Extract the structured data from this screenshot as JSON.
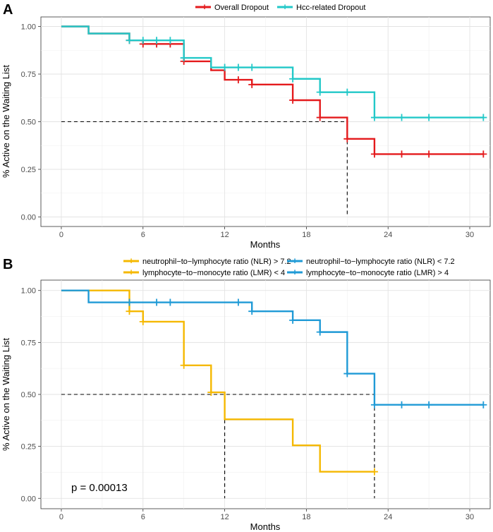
{
  "chart_data": [
    {
      "type": "line",
      "panel_label": "A",
      "title": "",
      "xlabel": "Months",
      "ylabel": "% Active on the Waiting List",
      "xlim": [
        -1.5,
        31.5
      ],
      "ylim": [
        -0.05,
        1.05
      ],
      "xticks": [
        0,
        6,
        12,
        18,
        24,
        30
      ],
      "yticks": [
        0.0,
        0.25,
        0.5,
        0.75,
        1.0
      ],
      "xtick_labels": [
        "0",
        "6",
        "12",
        "18",
        "24",
        "30"
      ],
      "ytick_labels": [
        "0.00",
        "0.25",
        "0.50",
        "0.75",
        "1.00"
      ],
      "grid": true,
      "legend_position": "top",
      "series": [
        {
          "name": "Overall Dropout",
          "color": "#e41a1c",
          "steps": [
            [
              0,
              1.0
            ],
            [
              2,
              0.963
            ],
            [
              5,
              0.927
            ],
            [
              6,
              0.908
            ],
            [
              9,
              0.817
            ],
            [
              11,
              0.77
            ],
            [
              12,
              0.72
            ],
            [
              14,
              0.695
            ],
            [
              17,
              0.613
            ],
            [
              19,
              0.522
            ],
            [
              21,
              0.41
            ],
            [
              23,
              0.33
            ],
            [
              31,
              0.33
            ]
          ],
          "censor": [
            [
              5,
              0.927
            ],
            [
              6,
              0.908
            ],
            [
              7,
              0.908
            ],
            [
              8,
              0.908
            ],
            [
              9,
              0.817
            ],
            [
              13,
              0.72
            ],
            [
              14,
              0.695
            ],
            [
              17,
              0.613
            ],
            [
              19,
              0.522
            ],
            [
              21,
              0.41
            ],
            [
              23,
              0.33
            ],
            [
              25,
              0.33
            ],
            [
              27,
              0.33
            ],
            [
              31,
              0.33
            ]
          ]
        },
        {
          "name": "Hcc-related Dropout",
          "color": "#22c8c8",
          "steps": [
            [
              0,
              1.0
            ],
            [
              2,
              0.963
            ],
            [
              5,
              0.927
            ],
            [
              9,
              0.835
            ],
            [
              11,
              0.785
            ],
            [
              17,
              0.725
            ],
            [
              19,
              0.655
            ],
            [
              23,
              0.522
            ],
            [
              31,
              0.522
            ]
          ],
          "censor": [
            [
              5,
              0.927
            ],
            [
              6,
              0.927
            ],
            [
              7,
              0.927
            ],
            [
              8,
              0.927
            ],
            [
              9,
              0.835
            ],
            [
              12,
              0.785
            ],
            [
              13,
              0.785
            ],
            [
              14,
              0.785
            ],
            [
              17,
              0.725
            ],
            [
              19,
              0.655
            ],
            [
              21,
              0.655
            ],
            [
              23,
              0.522
            ],
            [
              25,
              0.522
            ],
            [
              27,
              0.522
            ],
            [
              31,
              0.522
            ]
          ]
        }
      ],
      "median_lines": [
        {
          "x": 21,
          "y": 0.5
        }
      ]
    },
    {
      "type": "line",
      "panel_label": "B",
      "title": "",
      "xlabel": "Months",
      "ylabel": "% Active on the Waiting List",
      "xlim": [
        -1.5,
        31.5
      ],
      "ylim": [
        -0.05,
        1.05
      ],
      "xticks": [
        0,
        6,
        12,
        18,
        24,
        30
      ],
      "yticks": [
        0.0,
        0.25,
        0.5,
        0.75,
        1.0
      ],
      "xtick_labels": [
        "0",
        "6",
        "12",
        "18",
        "24",
        "30"
      ],
      "ytick_labels": [
        "0.00",
        "0.25",
        "0.50",
        "0.75",
        "1.00"
      ],
      "grid": true,
      "legend_position": "top",
      "annotation": "p = 0.00013",
      "series": [
        {
          "name": "neutrophil−to−lymphocyte ratio (NLR) > 7.2",
          "color": "#f5b800",
          "steps": [
            [
              0,
              1.0
            ],
            [
              5,
              0.9
            ],
            [
              6,
              0.85
            ],
            [
              9,
              0.64
            ],
            [
              11,
              0.51
            ],
            [
              12,
              0.38
            ],
            [
              17,
              0.255
            ],
            [
              19,
              0.128
            ],
            [
              23,
              0.128
            ]
          ],
          "censor": [
            [
              5,
              0.9
            ],
            [
              6,
              0.85
            ],
            [
              9,
              0.64
            ],
            [
              11,
              0.51
            ],
            [
              23,
              0.128
            ]
          ]
        },
        {
          "name": "neutrophil−to−lymphocyte ratio (NLR) < 7.2",
          "color": "#1f9ad6",
          "steps": [
            [
              0,
              1.0
            ],
            [
              2,
              0.943
            ],
            [
              14,
              0.9
            ],
            [
              17,
              0.857
            ],
            [
              19,
              0.8
            ],
            [
              21,
              0.6
            ],
            [
              23,
              0.45
            ],
            [
              31,
              0.45
            ]
          ],
          "censor": [
            [
              5,
              0.943
            ],
            [
              7,
              0.943
            ],
            [
              8,
              0.943
            ],
            [
              13,
              0.943
            ],
            [
              14,
              0.9
            ],
            [
              17,
              0.857
            ],
            [
              19,
              0.8
            ],
            [
              21,
              0.6
            ],
            [
              23,
              0.45
            ],
            [
              25,
              0.45
            ],
            [
              27,
              0.45
            ],
            [
              31,
              0.45
            ]
          ]
        },
        {
          "name": "lymphocyte−to−monocyte ratio (LMR) < 4",
          "color": "#f5b800",
          "steps": [],
          "censor": []
        },
        {
          "name": "lymphocyte−to−monocyte ratio (LMR) > 4",
          "color": "#1f9ad6",
          "steps": [],
          "censor": []
        }
      ],
      "median_lines": [
        {
          "x": 12,
          "y": 0.5
        },
        {
          "x": 23,
          "y": 0.5
        }
      ]
    }
  ]
}
